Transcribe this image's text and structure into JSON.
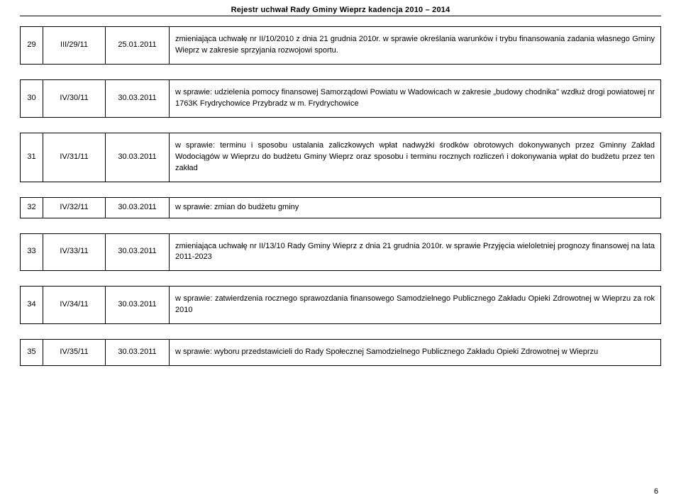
{
  "header": {
    "title": "Rejestr  uchwał  Rady Gminy Wieprz kadencja 2010 – 2014"
  },
  "page": {
    "number": "6"
  },
  "table": {
    "rows": [
      {
        "num": "29",
        "ref": "III/29/11",
        "date": "25.01.2011",
        "desc": "zmieniająca uchwałę nr II/10/2010 z dnia 21 grudnia 2010r. w sprawie określania warunków i trybu finansowania zadania własnego Gminy Wieprz w zakresie sprzyjania rozwojowi sportu."
      },
      {
        "num": "30",
        "ref": "IV/30/11",
        "date": "30.03.2011",
        "desc": "w sprawie: udzielenia pomocy finansowej Samorządowi Powiatu w Wadowicach w zakresie „budowy chodnika\" wzdłuż  drogi powiatowej nr 1763K Frydrychowice Przybradz w m. Frydrychowice"
      },
      {
        "num": "31",
        "ref": "IV/31/11",
        "date": "30.03.2011",
        "desc": "w sprawie: terminu i sposobu ustalania zaliczkowych wpłat nadwyżki środków obrotowych dokonywanych przez Gminny Zakład Wodociągów w Wieprzu do budżetu Gminy Wieprz oraz sposobu i terminu rocznych rozliczeń i dokonywania wpłat do budżetu przez ten zakład"
      },
      {
        "num": "32",
        "ref": "IV/32/11",
        "date": "30.03.2011",
        "desc": "w sprawie: zmian do budżetu gminy"
      },
      {
        "num": "33",
        "ref": "IV/33/11",
        "date": "30.03.2011",
        "desc": "zmieniająca uchwałę nr II/13/10 Rady Gminy Wieprz z dnia 21 grudnia 2010r. w sprawie Przyjęcia wieloletniej prognozy finansowej na lata 2011-2023"
      },
      {
        "num": "34",
        "ref": "IV/34/11",
        "date": "30.03.2011",
        "desc": "w sprawie: zatwierdzenia rocznego sprawozdania finansowego Samodzielnego Publicznego Zakładu Opieki Zdrowotnej w Wieprzu za rok 2010"
      },
      {
        "num": "35",
        "ref": "IV/35/11",
        "date": "30.03.2011",
        "desc": "w sprawie: wyboru przedstawicieli do Rady Społecznej Samodzielnego Publicznego Zakładu Opieki Zdrowotnej w Wieprzu"
      }
    ]
  }
}
